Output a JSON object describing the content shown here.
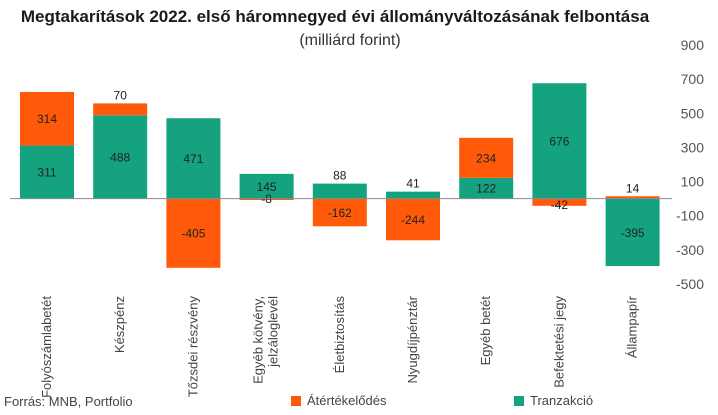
{
  "chart_data": {
    "type": "bar",
    "stacked": true,
    "title": "Megtakarítások 2022. első háromnegyed évi állományváltozásának felbontása",
    "subtitle": "(milliárd forint)",
    "categories": [
      "Folyószámlabetét",
      "Készpénz",
      "Tőzsdei részvény",
      "Egyéb kötvény, jelzáloglevél",
      "Életbiztosítás",
      "Nyugdíjpénztár",
      "Egyéb betét",
      "Befektetési jegy",
      "Állampapír"
    ],
    "series": [
      {
        "name": "Tranzakció",
        "color": "#15a37f",
        "values": [
          311,
          488,
          471,
          145,
          88,
          41,
          122,
          676,
          -395
        ]
      },
      {
        "name": "Átértékelődés",
        "color": "#ff5a0a",
        "values": [
          314,
          70,
          -405,
          -8,
          -162,
          -244,
          234,
          -42,
          14
        ]
      }
    ],
    "yaxis": {
      "ticks": [
        900,
        700,
        500,
        300,
        100,
        -100,
        -300,
        -500
      ],
      "range": [
        -500,
        900
      ],
      "position": "right"
    },
    "grid": false,
    "legend": "bottom"
  },
  "source": "Forrás: MNB, Portfolio"
}
